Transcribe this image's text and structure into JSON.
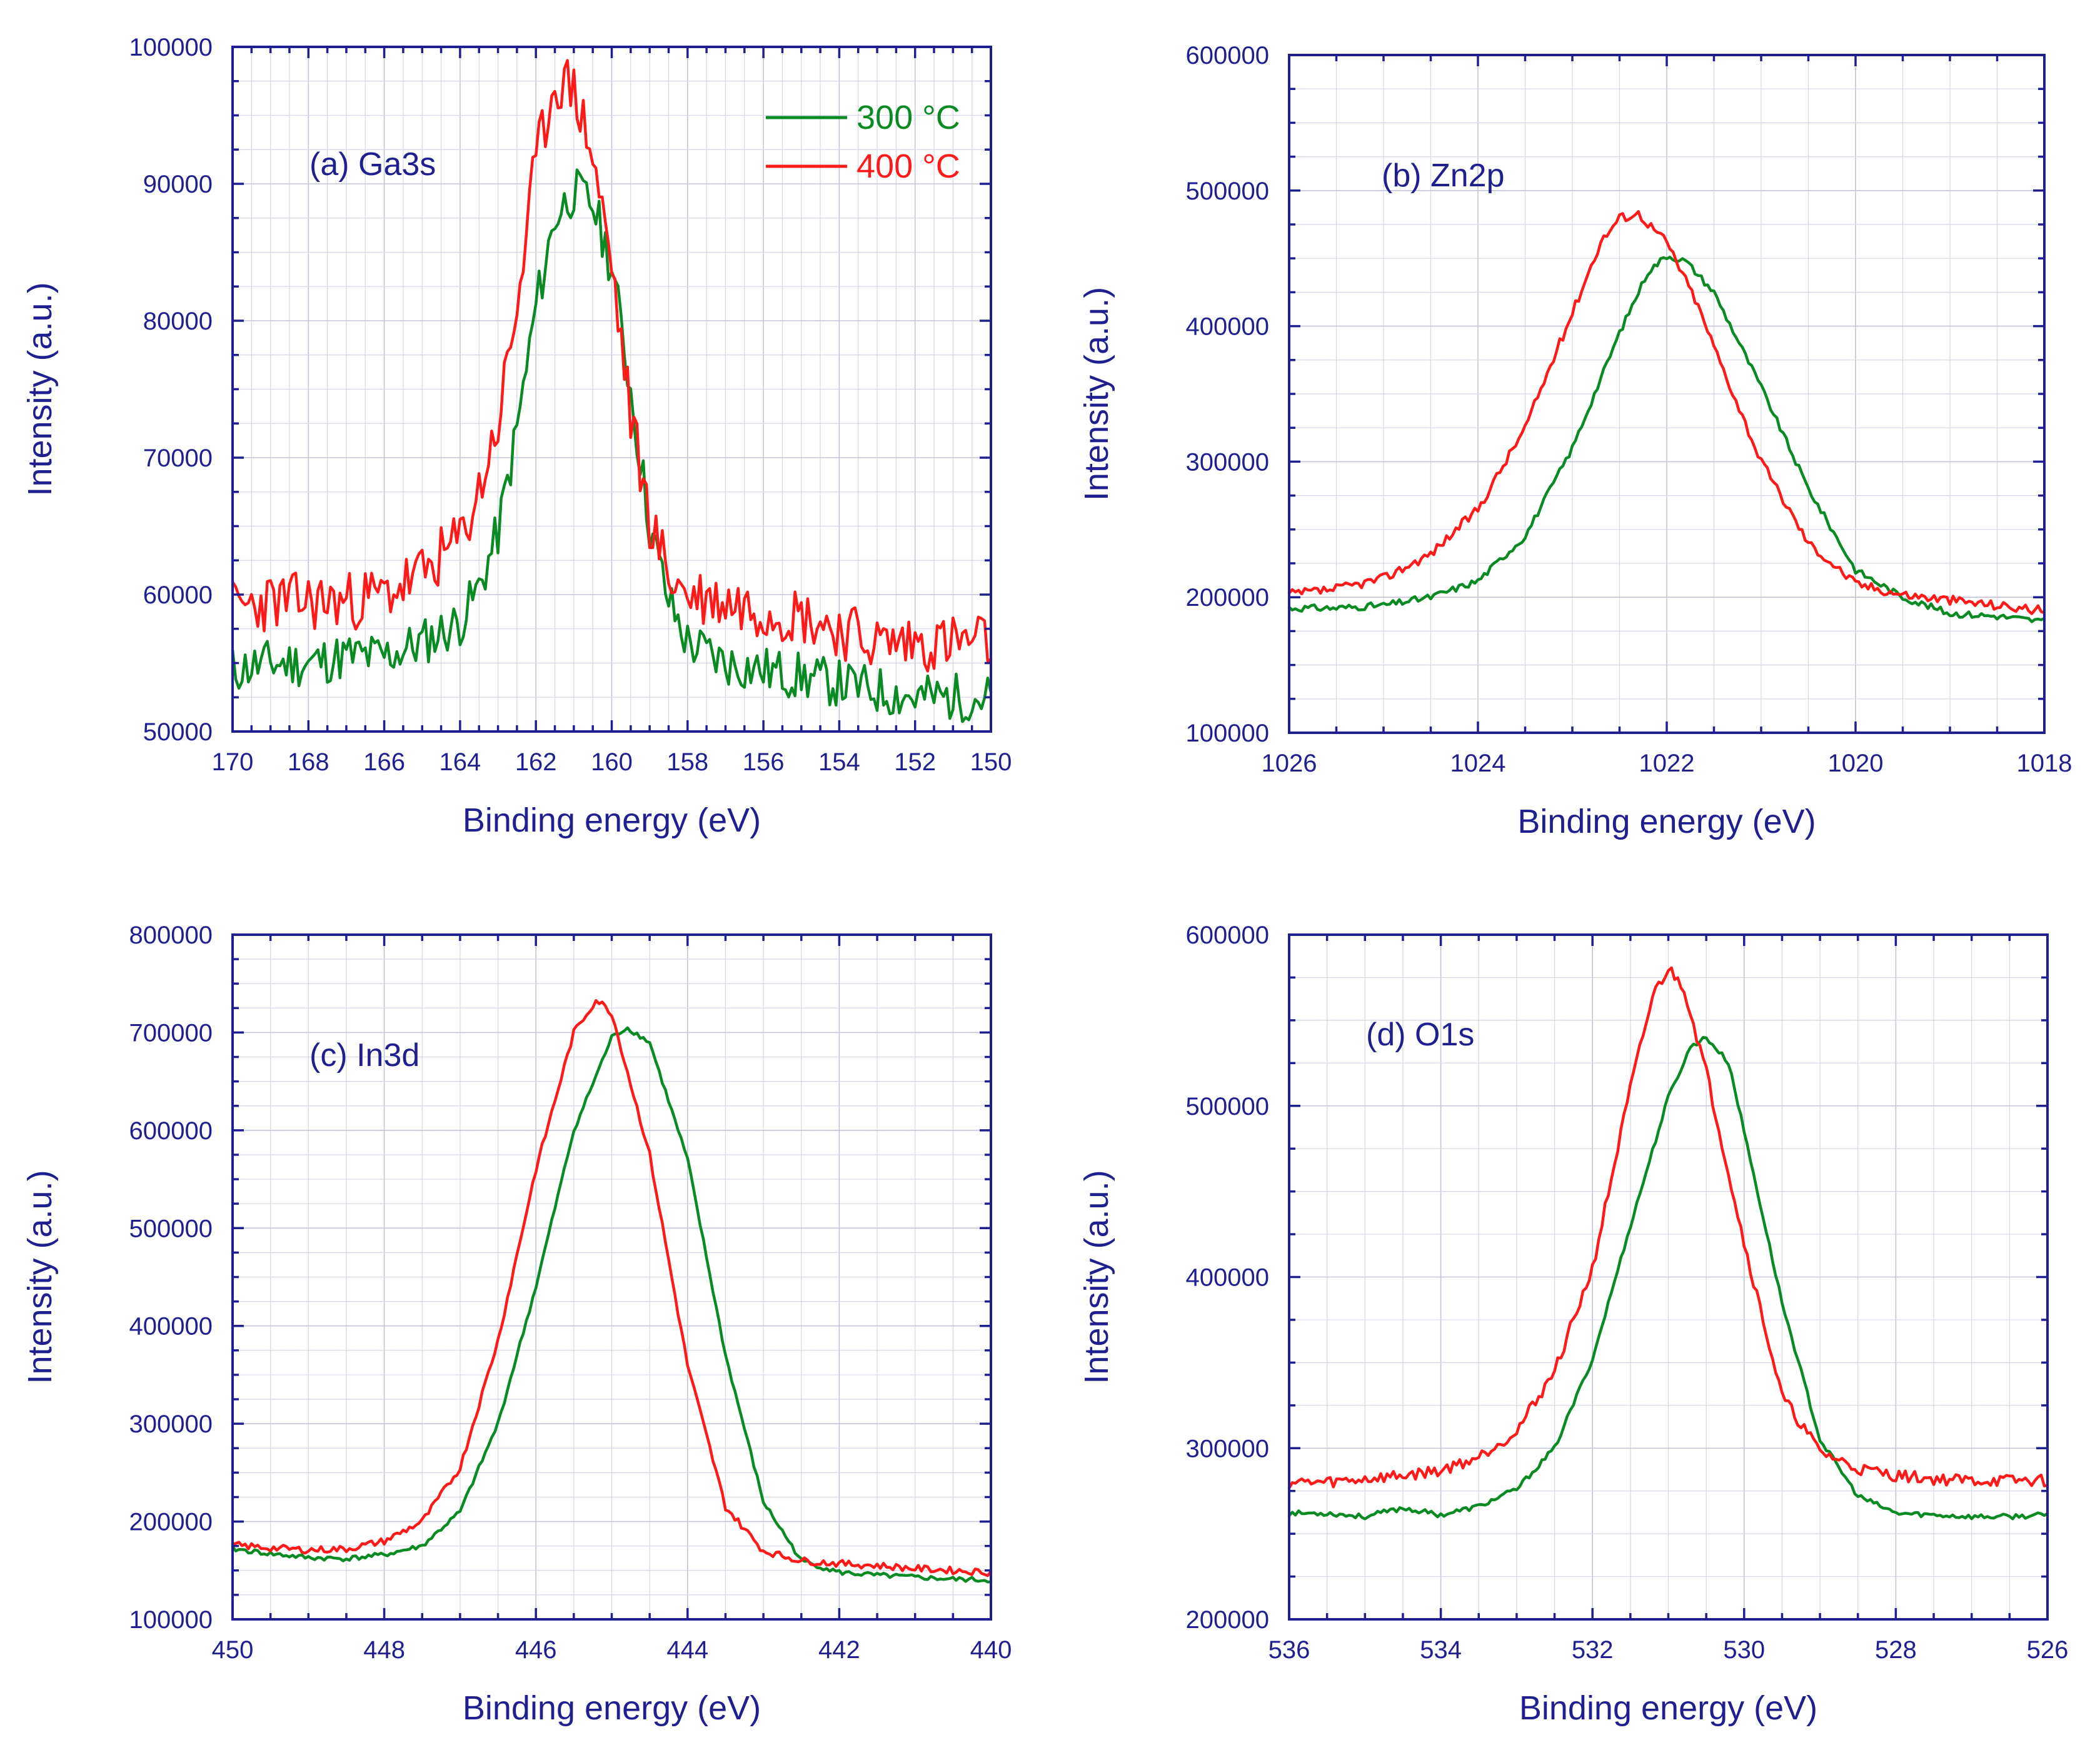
{
  "figure": {
    "legend": [
      {
        "name": "300 °C",
        "color": "#0a8a22"
      },
      {
        "name": "400 °C",
        "color": "#ff1a1a"
      }
    ]
  },
  "chart_data": [
    {
      "type": "line",
      "panel_label": "(a) Ga3s",
      "xlabel": "Binding energy (eV)",
      "ylabel": "Intensity (a.u.)",
      "xlim": [
        170,
        150
      ],
      "ylim": [
        50000,
        100000
      ],
      "x_ticks": [
        170,
        168,
        166,
        164,
        162,
        160,
        158,
        156,
        154,
        152,
        150
      ],
      "x_tick_labels": [
        "170",
        "168",
        "166",
        "164",
        "162",
        "160",
        "158",
        "156",
        "154",
        "152",
        "150"
      ],
      "y_ticks": [
        50000,
        60000,
        70000,
        80000,
        90000,
        100000
      ],
      "y_tick_labels": [
        "50000",
        "60000",
        "70000",
        "80000",
        "90000",
        "100000"
      ],
      "grid": true,
      "legend_position": "top-right",
      "series": [
        {
          "name": "300 °C",
          "color": "#0a8a22",
          "noise": 1800,
          "seed": 11,
          "x": [
            170,
            169,
            168,
            167,
            166,
            165,
            164,
            163.5,
            163,
            162.5,
            162,
            161.5,
            161,
            160.5,
            160,
            159.5,
            159,
            158.5,
            158,
            157,
            156,
            155,
            154,
            153,
            152,
            151,
            150
          ],
          "y": [
            54500,
            55000,
            55000,
            55500,
            55500,
            56500,
            58000,
            60500,
            64500,
            72000,
            81000,
            87500,
            89500,
            88500,
            84000,
            75000,
            65000,
            59500,
            56500,
            55000,
            54500,
            54000,
            53500,
            53000,
            52500,
            52500,
            52500
          ]
        },
        {
          "name": "400 °C",
          "color": "#ff1a1a",
          "noise": 2200,
          "seed": 23,
          "x": [
            170,
            169,
            168,
            167,
            166,
            165,
            164,
            163.5,
            163,
            162.5,
            162,
            161.5,
            161,
            160.5,
            160,
            159.5,
            159,
            158.5,
            158,
            157,
            156,
            155,
            154,
            153,
            152,
            151,
            150
          ],
          "y": [
            59000,
            59500,
            59500,
            59500,
            60000,
            61500,
            64000,
            67500,
            72500,
            81000,
            91500,
            97500,
            97000,
            92000,
            84000,
            73000,
            65500,
            61500,
            60000,
            59500,
            59000,
            58500,
            57500,
            56500,
            56500,
            56500,
            56500
          ]
        }
      ]
    },
    {
      "type": "line",
      "panel_label": "(b) Zn2p",
      "xlabel": "Binding energy (eV)",
      "ylabel": "Intensity (a.u.)",
      "xlim": [
        1026,
        1018
      ],
      "ylim": [
        100000,
        600000
      ],
      "x_ticks": [
        1026,
        1024,
        1022,
        1020,
        1018
      ],
      "x_tick_labels": [
        "1026",
        "1024",
        "1022",
        "1020",
        "1018"
      ],
      "y_ticks": [
        100000,
        200000,
        300000,
        400000,
        500000,
        600000
      ],
      "y_tick_labels": [
        "100000",
        "200000",
        "300000",
        "400000",
        "500000",
        "600000"
      ],
      "grid": true,
      "series": [
        {
          "name": "300 °C",
          "color": "#0a8a22",
          "noise": 2500,
          "seed": 31,
          "x": [
            1026,
            1025.5,
            1025,
            1024.5,
            1024,
            1023.5,
            1023,
            1022.5,
            1022.2,
            1022,
            1021.8,
            1021.5,
            1021,
            1020.5,
            1020,
            1019.5,
            1019,
            1018.5,
            1018
          ],
          "y": [
            192000,
            192000,
            194000,
            200000,
            212000,
            245000,
            310000,
            395000,
            440000,
            452000,
            448000,
            425000,
            355000,
            280000,
            220000,
            200000,
            188000,
            186000,
            182000
          ]
        },
        {
          "name": "400 °C",
          "color": "#ff1a1a",
          "noise": 3500,
          "seed": 37,
          "x": [
            1026,
            1025.5,
            1025,
            1024.5,
            1024,
            1023.5,
            1023,
            1022.7,
            1022.5,
            1022.3,
            1022,
            1021.7,
            1021.5,
            1021,
            1020.5,
            1020,
            1019.5,
            1019,
            1018.5,
            1018
          ],
          "y": [
            202000,
            206000,
            214000,
            232000,
            265000,
            325000,
            410000,
            462000,
            480000,
            483000,
            462000,
            420000,
            385000,
            300000,
            240000,
            210000,
            202000,
            198000,
            194000,
            190000
          ]
        }
      ]
    },
    {
      "type": "line",
      "panel_label": "(c) In3d",
      "xlabel": "Binding energy (eV)",
      "ylabel": "Intensity (a.u.)",
      "xlim": [
        450,
        440
      ],
      "ylim": [
        100000,
        800000
      ],
      "x_ticks": [
        450,
        448,
        446,
        444,
        442,
        440
      ],
      "x_tick_labels": [
        "450",
        "448",
        "446",
        "444",
        "442",
        "440"
      ],
      "y_ticks": [
        100000,
        200000,
        300000,
        400000,
        500000,
        600000,
        700000,
        800000
      ],
      "y_tick_labels": [
        "100000",
        "200000",
        "300000",
        "400000",
        "500000",
        "600000",
        "700000",
        "800000"
      ],
      "grid": true,
      "series": [
        {
          "name": "300 °C",
          "color": "#0a8a22",
          "noise": 2500,
          "seed": 41,
          "x": [
            450,
            449.5,
            449,
            448.5,
            448,
            447.5,
            447,
            446.5,
            446,
            445.5,
            445,
            444.8,
            444.5,
            444,
            443.5,
            443,
            442.5,
            442,
            441.5,
            441,
            440.5,
            440
          ],
          "y": [
            172000,
            167000,
            163000,
            162000,
            166000,
            175000,
            210000,
            300000,
            440000,
            600000,
            695000,
            705000,
            690000,
            570000,
            370000,
            220000,
            160000,
            148000,
            145000,
            143000,
            141000,
            140000
          ]
        },
        {
          "name": "400 °C",
          "color": "#ff1a1a",
          "noise": 3500,
          "seed": 43,
          "x": [
            450,
            449.5,
            449,
            448.5,
            448,
            447.5,
            447,
            446.5,
            446,
            445.5,
            445.2,
            445,
            444.5,
            444,
            443.5,
            443,
            442.5,
            442,
            441.5,
            441,
            440.5,
            440
          ],
          "y": [
            176000,
            173000,
            171000,
            172000,
            180000,
            200000,
            255000,
            385000,
            560000,
            700000,
            734000,
            720000,
            575000,
            360000,
            215000,
            170000,
            160000,
            157000,
            155000,
            152000,
            150000,
            148000
          ]
        }
      ]
    },
    {
      "type": "line",
      "panel_label": "(d) O1s",
      "xlabel": "Binding energy (eV)",
      "ylabel": "Intensity (a.u.)",
      "xlim": [
        536,
        526
      ],
      "ylim": [
        200000,
        600000
      ],
      "x_ticks": [
        536,
        534,
        532,
        530,
        528,
        526
      ],
      "x_tick_labels": [
        "536",
        "534",
        "532",
        "530",
        "528",
        "526"
      ],
      "y_ticks": [
        200000,
        300000,
        400000,
        500000,
        600000
      ],
      "y_tick_labels": [
        "200000",
        "300000",
        "400000",
        "500000",
        "600000"
      ],
      "grid": true,
      "series": [
        {
          "name": "300 °C",
          "color": "#0a8a22",
          "noise": 1500,
          "seed": 53,
          "x": [
            536,
            535.5,
            535,
            534.5,
            534,
            533.5,
            533,
            532.5,
            532,
            531.5,
            531,
            530.7,
            530.5,
            530.2,
            530,
            529.5,
            529,
            528.5,
            528,
            527.5,
            527,
            526.5,
            526
          ],
          "y": [
            262000,
            262000,
            260000,
            265000,
            261000,
            266000,
            276000,
            300000,
            352000,
            430000,
            505000,
            535000,
            540000,
            525000,
            485000,
            385000,
            305000,
            272000,
            262000,
            261000,
            260000,
            260000,
            261000
          ]
        },
        {
          "name": "400 °C",
          "color": "#ff1a1a",
          "noise": 3500,
          "seed": 59,
          "x": [
            536,
            535.5,
            535,
            534.5,
            534,
            533.5,
            533,
            532.5,
            532,
            531.5,
            531.2,
            531,
            530.8,
            530.5,
            530,
            529.5,
            529,
            528.5,
            528,
            527.5,
            527,
            526.5,
            526
          ],
          "y": [
            280000,
            280000,
            282000,
            284000,
            287000,
            295000,
            310000,
            345000,
            405000,
            510000,
            565000,
            580000,
            570000,
            520000,
            420000,
            330000,
            298000,
            288000,
            284000,
            282000,
            281000,
            281000,
            281000
          ]
        }
      ]
    }
  ]
}
